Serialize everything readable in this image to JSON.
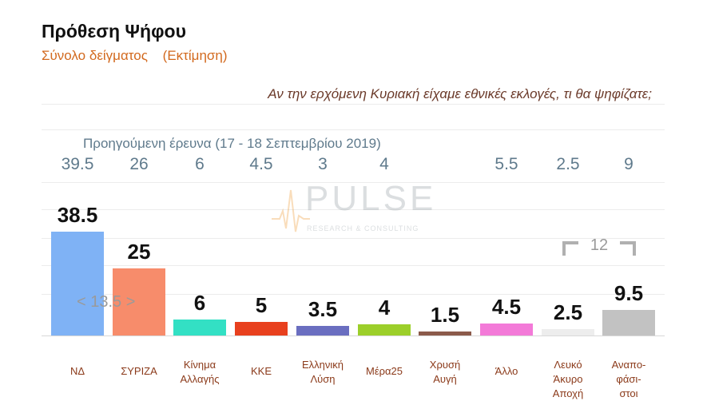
{
  "title": "Πρόθεση Ψήφου",
  "subtitle": {
    "main": "Σύνολο δείγματος",
    "note": "(Εκτίμηση)"
  },
  "question": "Αν την ερχόμενη Κυριακή είχαμε εθνικές εκλογές, τι θα ψηφίζατε;",
  "previous_survey_label": "Προηγούμενη έρευνα  (17 - 18 Σεπτεμβρίου  2019)",
  "logo": {
    "word": "PULSE",
    "tagline": "RESEARCH & CONSULTING"
  },
  "annotations": {
    "gap_nd_syriza": "< 13.5 >",
    "bracket_total": "12"
  },
  "colors": {
    "ND": "#7fb2f5",
    "SYRIZA": "#f78c6b",
    "KINAL": "#33e0c4",
    "KKE": "#e8401e",
    "EL": "#6a6ec0",
    "MERA25": "#9ccf2a",
    "XA": "#8b5a4a",
    "ALLO": "#f37ad8",
    "LEYKO": "#ededed",
    "ANAPOF": "#c2c2c2"
  },
  "chart_data": {
    "type": "bar",
    "title": "Πρόθεση Ψήφου",
    "categories": [
      [
        "ΝΔ"
      ],
      [
        "ΣΥΡΙΖΑ"
      ],
      [
        "Κίνημα",
        "Αλλαγής"
      ],
      [
        "ΚΚΕ"
      ],
      [
        "Ελληνική",
        "Λύση"
      ],
      [
        "Μέρα25"
      ],
      [
        "Χρυσή",
        "Αυγή"
      ],
      [
        "Άλλο"
      ],
      [
        "Λευκό",
        "Άκυρο",
        "Αποχή"
      ],
      [
        "Αναπο-",
        "φάσι-",
        "στοι"
      ]
    ],
    "values": [
      38.5,
      25,
      6,
      5,
      3.5,
      4,
      1.5,
      4.5,
      2.5,
      9.5
    ],
    "value_labels": [
      "38.5",
      "25",
      "6",
      "5",
      "3.5",
      "4",
      "1.5",
      "4.5",
      "2.5",
      "9.5"
    ],
    "previous_values": [
      "39.5",
      "26",
      "6",
      "4.5",
      "3",
      "4",
      "",
      "5.5",
      "2.5",
      "9"
    ],
    "ylim": [
      0,
      45
    ],
    "grid": true
  }
}
